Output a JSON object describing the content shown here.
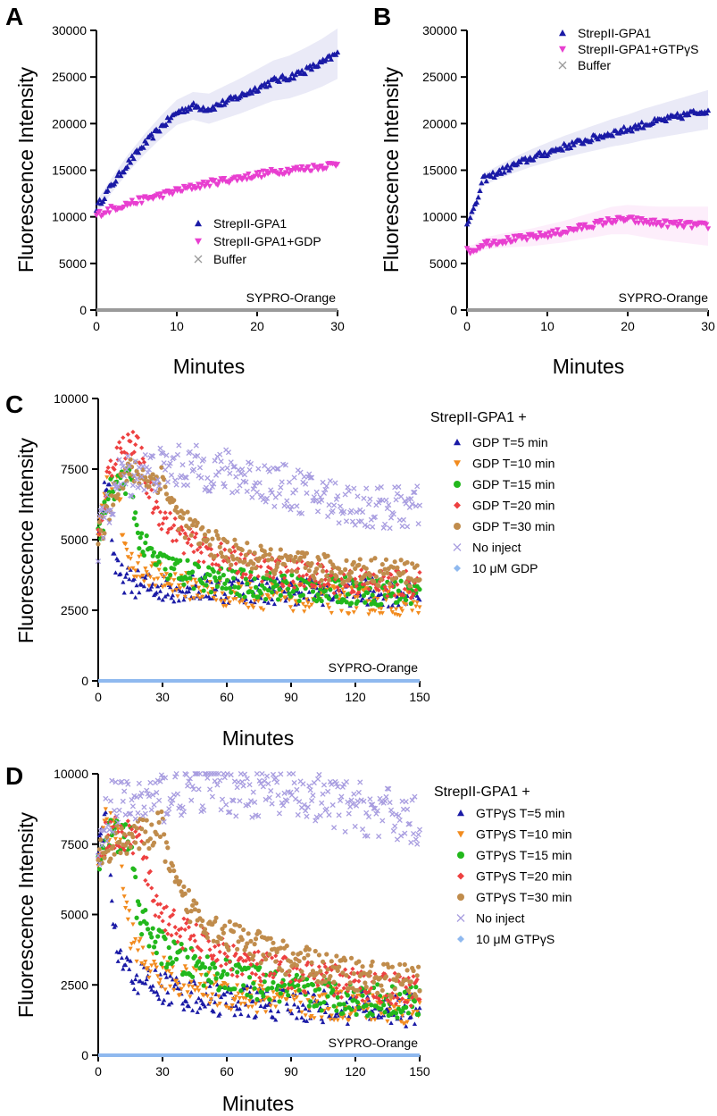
{
  "chart_data": [
    {
      "panel": "A",
      "type": "scatter",
      "xlabel": "Minutes",
      "ylabel": "Fluorescence Intensity",
      "xlim": [
        0,
        30
      ],
      "ylim": [
        0,
        30000
      ],
      "xticks": [
        "0",
        "10",
        "20",
        "30"
      ],
      "yticks": [
        "0",
        "5000",
        "10000",
        "15000",
        "20000",
        "25000",
        "30000"
      ],
      "annotation": "SYPRO-Orange",
      "legend_position": "center-right",
      "series": [
        {
          "name": "StrepII-GPA1",
          "color": "#1a1aa6",
          "marker": "triangle-up",
          "error_band": true,
          "x": [
            0,
            2,
            4,
            6,
            8,
            10,
            12,
            14,
            16,
            18,
            20,
            22,
            24,
            26,
            28,
            30
          ],
          "y": [
            11000,
            13500,
            15800,
            17800,
            19600,
            21200,
            21900,
            21600,
            22300,
            23000,
            23800,
            24600,
            25000,
            25700,
            26500,
            27500
          ]
        },
        {
          "name": "StrepII-GPA1+GDP",
          "color": "#e83fd0",
          "marker": "triangle-down",
          "error_band": false,
          "x": [
            0,
            2,
            4,
            6,
            8,
            10,
            12,
            14,
            16,
            18,
            20,
            22,
            24,
            26,
            28,
            30
          ],
          "y": [
            10200,
            10900,
            11400,
            11900,
            12300,
            12800,
            13200,
            13600,
            13900,
            14200,
            14500,
            14800,
            15000,
            15200,
            15400,
            15700
          ]
        },
        {
          "name": "Buffer",
          "color": "#9a9a9a",
          "marker": "x",
          "error_band": false,
          "x": [
            0,
            30
          ],
          "y": [
            0,
            0
          ]
        }
      ]
    },
    {
      "panel": "B",
      "type": "scatter",
      "xlabel": "Minutes",
      "ylabel": "Fluorescence Intensity",
      "xlim": [
        0,
        30
      ],
      "ylim": [
        0,
        30000
      ],
      "xticks": [
        "0",
        "10",
        "20",
        "30"
      ],
      "yticks": [
        "0",
        "5000",
        "10000",
        "15000",
        "20000",
        "25000",
        "30000"
      ],
      "annotation": "SYPRO-Orange",
      "legend_position": "top-right",
      "series": [
        {
          "name": "StrepII-GPA1",
          "color": "#1a1aa6",
          "marker": "triangle-up",
          "error_band": true,
          "x": [
            0,
            1,
            2,
            4,
            6,
            8,
            10,
            12,
            14,
            16,
            18,
            20,
            22,
            24,
            26,
            28,
            30
          ],
          "y": [
            9500,
            11000,
            14000,
            14800,
            15600,
            16300,
            16900,
            17500,
            18000,
            18500,
            19000,
            19400,
            19900,
            20300,
            20700,
            21100,
            21500
          ]
        },
        {
          "name": "StrepII-GPA1+GTPγS",
          "color": "#e83fd0",
          "marker": "triangle-down",
          "error_band": true,
          "x": [
            0,
            1,
            2,
            4,
            6,
            8,
            10,
            12,
            14,
            16,
            18,
            20,
            22,
            24,
            26,
            28,
            30
          ],
          "y": [
            6300,
            6500,
            7100,
            7400,
            7600,
            7800,
            8100,
            8400,
            8800,
            9200,
            9600,
            9700,
            9500,
            9300,
            9200,
            9100,
            9000
          ]
        },
        {
          "name": "Buffer",
          "color": "#9a9a9a",
          "marker": "x",
          "error_band": false,
          "x": [
            0,
            30
          ],
          "y": [
            0,
            0
          ]
        }
      ]
    },
    {
      "panel": "C",
      "type": "scatter",
      "xlabel": "Minutes",
      "ylabel": "Fluorescence Intensity",
      "xlim": [
        0,
        150
      ],
      "ylim": [
        0,
        10000
      ],
      "xticks": [
        "0",
        "30",
        "60",
        "90",
        "120",
        "150"
      ],
      "yticks": [
        "0",
        "2500",
        "5000",
        "7500",
        "10000"
      ],
      "annotation": "SYPRO-Orange",
      "legend_title": "StrepII-GPA1 +",
      "series": [
        {
          "name": "GDP T=5 min",
          "color": "#1a1aa6",
          "marker": "triangle-up",
          "x": [
            0,
            3,
            5,
            6,
            8,
            10,
            15,
            20,
            30,
            45,
            60,
            90,
            120,
            150
          ],
          "y": [
            5000,
            6800,
            7200,
            5500,
            4000,
            3700,
            3500,
            3400,
            3300,
            3300,
            3250,
            3200,
            3150,
            3100
          ]
        },
        {
          "name": "GDP T=10 min",
          "color": "#f28b1e",
          "marker": "triangle-down",
          "x": [
            0,
            3,
            5,
            8,
            10,
            11,
            13,
            15,
            20,
            30,
            45,
            60,
            90,
            120,
            150
          ],
          "y": [
            5000,
            6600,
            6900,
            7100,
            6700,
            5200,
            4400,
            4200,
            4000,
            3600,
            3300,
            3100,
            2950,
            2850,
            2800
          ]
        },
        {
          "name": "GDP T=15 min",
          "color": "#22b81c",
          "marker": "circle",
          "x": [
            0,
            5,
            10,
            15,
            16,
            18,
            20,
            25,
            30,
            45,
            60,
            90,
            120,
            150
          ],
          "y": [
            5000,
            6700,
            7000,
            7200,
            6500,
            5500,
            4900,
            4400,
            4100,
            3700,
            3500,
            3300,
            3200,
            3100
          ]
        },
        {
          "name": "GDP T=20 min",
          "color": "#ee4040",
          "marker": "diamond",
          "x": [
            0,
            5,
            10,
            15,
            20,
            21,
            23,
            25,
            30,
            40,
            50,
            60,
            75,
            90,
            120,
            150
          ],
          "y": [
            5000,
            7500,
            8200,
            8500,
            8000,
            7400,
            6900,
            6400,
            5800,
            5000,
            4600,
            4300,
            4000,
            3800,
            3500,
            3400
          ]
        },
        {
          "name": "GDP T=30 min",
          "color": "#c08c4c",
          "marker": "circle",
          "x": [
            0,
            10,
            15,
            20,
            25,
            30,
            33,
            36,
            40,
            50,
            60,
            75,
            90,
            105,
            120,
            135,
            150
          ],
          "y": [
            5000,
            7200,
            7400,
            7300,
            7100,
            7200,
            6500,
            6000,
            5600,
            5000,
            4600,
            4300,
            4100,
            4000,
            3900,
            3850,
            3800
          ]
        },
        {
          "name": "No inject",
          "color": "#a89de0",
          "marker": "x",
          "x": [
            0,
            10,
            20,
            30,
            40,
            50,
            60,
            70,
            80,
            90,
            100,
            110,
            120,
            130,
            140,
            150
          ],
          "y": [
            5000,
            7200,
            7400,
            7500,
            7600,
            7500,
            7400,
            7200,
            7000,
            6800,
            6600,
            6400,
            6200,
            6100,
            6150,
            6100
          ]
        },
        {
          "name": "10 μM GDP",
          "color": "#8fb9ef",
          "marker": "diamond",
          "x": [
            0,
            150
          ],
          "y": [
            0,
            0
          ]
        }
      ]
    },
    {
      "panel": "D",
      "type": "scatter",
      "xlabel": "Minutes",
      "ylabel": "Fluorescence Intensity",
      "xlim": [
        0,
        150
      ],
      "ylim": [
        0,
        10000
      ],
      "xticks": [
        "0",
        "30",
        "60",
        "90",
        "120",
        "150"
      ],
      "yticks": [
        "0",
        "2500",
        "5000",
        "7500",
        "10000"
      ],
      "annotation": "SYPRO-Orange",
      "legend_title": "StrepII-GPA1 +",
      "series": [
        {
          "name": "GTPγS T=5 min",
          "color": "#1a1aa6",
          "marker": "triangle-up",
          "x": [
            0,
            2,
            4,
            5,
            6,
            7,
            9,
            12,
            15,
            20,
            30,
            45,
            60,
            90,
            120,
            150
          ],
          "y": [
            7000,
            8000,
            8300,
            7500,
            5800,
            4600,
            3700,
            3200,
            2900,
            2700,
            2400,
            2100,
            1950,
            1800,
            1700,
            1600
          ]
        },
        {
          "name": "GTPγS T=10 min",
          "color": "#f28b1e",
          "marker": "triangle-down",
          "x": [
            0,
            3,
            6,
            10,
            11,
            13,
            15,
            18,
            22,
            30,
            45,
            60,
            90,
            120,
            150
          ],
          "y": [
            7000,
            8200,
            8000,
            7800,
            6500,
            5200,
            4400,
            3800,
            3300,
            2900,
            2500,
            2200,
            1900,
            1750,
            1700
          ]
        },
        {
          "name": "GTPγS T=15 min",
          "color": "#22b81c",
          "marker": "circle",
          "x": [
            0,
            5,
            10,
            15,
            16,
            18,
            21,
            25,
            30,
            40,
            60,
            90,
            120,
            150
          ],
          "y": [
            7000,
            7900,
            7700,
            7700,
            6700,
            5400,
            4700,
            4200,
            3800,
            3300,
            2800,
            2300,
            2000,
            1900
          ]
        },
        {
          "name": "GTPγS T=20 min",
          "color": "#ee4040",
          "marker": "diamond",
          "x": [
            0,
            5,
            10,
            15,
            20,
            21,
            23,
            26,
            30,
            40,
            50,
            60,
            75,
            90,
            120,
            150
          ],
          "y": [
            7000,
            8000,
            7800,
            7700,
            7700,
            7000,
            6300,
            5600,
            5000,
            4300,
            3900,
            3500,
            3100,
            2900,
            2500,
            2300
          ]
        },
        {
          "name": "GTPγS T=30 min",
          "color": "#c08c4c",
          "marker": "circle",
          "x": [
            0,
            10,
            20,
            25,
            30,
            31,
            33,
            36,
            40,
            50,
            60,
            75,
            90,
            105,
            120,
            135,
            150
          ],
          "y": [
            7000,
            7700,
            7800,
            7900,
            8100,
            7600,
            6700,
            6000,
            5500,
            4800,
            4300,
            3800,
            3400,
            3100,
            2900,
            2700,
            2600
          ]
        },
        {
          "name": "No inject",
          "color": "#a89de0",
          "marker": "x",
          "x": [
            0,
            5,
            10,
            20,
            30,
            40,
            50,
            60,
            70,
            80,
            90,
            100,
            110,
            120,
            130,
            140,
            150
          ],
          "y": [
            7500,
            8800,
            8900,
            9000,
            9200,
            9400,
            9600,
            9500,
            9400,
            9300,
            9200,
            9100,
            8900,
            8800,
            8600,
            8500,
            8300
          ]
        },
        {
          "name": "10 μM GTPγS",
          "color": "#8fb9ef",
          "marker": "diamond",
          "x": [
            0,
            150
          ],
          "y": [
            0,
            0
          ]
        }
      ]
    }
  ]
}
